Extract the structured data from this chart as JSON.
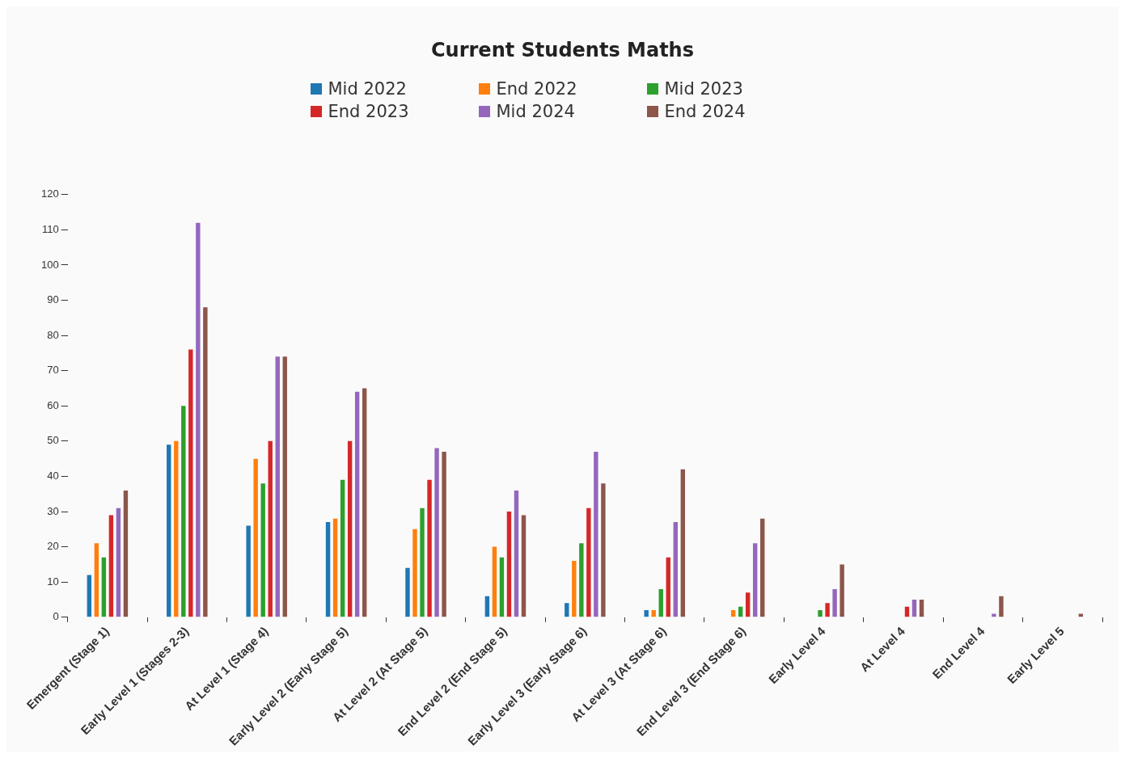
{
  "chart_data": {
    "type": "bar",
    "title": "Current Students Maths",
    "legend": "top",
    "categories": [
      "Emergent (Stage 1)",
      "Early Level 1 (Stages 2-3)",
      "At Level 1 (Stage 4)",
      "Early Level 2 (Early Stage 5)",
      "At Level 2 (At Stage 5)",
      "End Level 2 (End Stage 5)",
      "Early Level 3 (Early Stage 6)",
      "At Level 3 (At Stage 6)",
      "End Level 3 (End Stage 6)",
      "Early Level 4",
      "At Level 4",
      "End Level 4",
      "Early Level 5"
    ],
    "series": [
      {
        "name": "Mid 2022",
        "color": "#1f77b4",
        "values": [
          12,
          49,
          26,
          27,
          14,
          6,
          4,
          2,
          null,
          null,
          null,
          null,
          null
        ]
      },
      {
        "name": "End 2022",
        "color": "#ff7f0e",
        "values": [
          21,
          50,
          45,
          28,
          25,
          20,
          16,
          2,
          2,
          null,
          null,
          null,
          null
        ]
      },
      {
        "name": "Mid 2023",
        "color": "#2ca02c",
        "values": [
          17,
          60,
          38,
          39,
          31,
          17,
          21,
          8,
          3,
          2,
          null,
          null,
          null
        ]
      },
      {
        "name": "End 2023",
        "color": "#d62728",
        "values": [
          29,
          76,
          50,
          50,
          39,
          30,
          31,
          17,
          7,
          4,
          3,
          null,
          null
        ]
      },
      {
        "name": "Mid 2024",
        "color": "#9467bd",
        "values": [
          31,
          112,
          74,
          64,
          48,
          36,
          47,
          27,
          21,
          8,
          5,
          1,
          null
        ]
      },
      {
        "name": "End 2024",
        "color": "#8c564b",
        "values": [
          36,
          88,
          74,
          65,
          47,
          29,
          38,
          42,
          28,
          15,
          5,
          6,
          1
        ]
      }
    ],
    "ylim": [
      0,
      120
    ],
    "yticks": [
      0,
      10,
      20,
      30,
      40,
      50,
      60,
      70,
      80,
      90,
      100,
      110,
      120
    ],
    "grid": false
  }
}
